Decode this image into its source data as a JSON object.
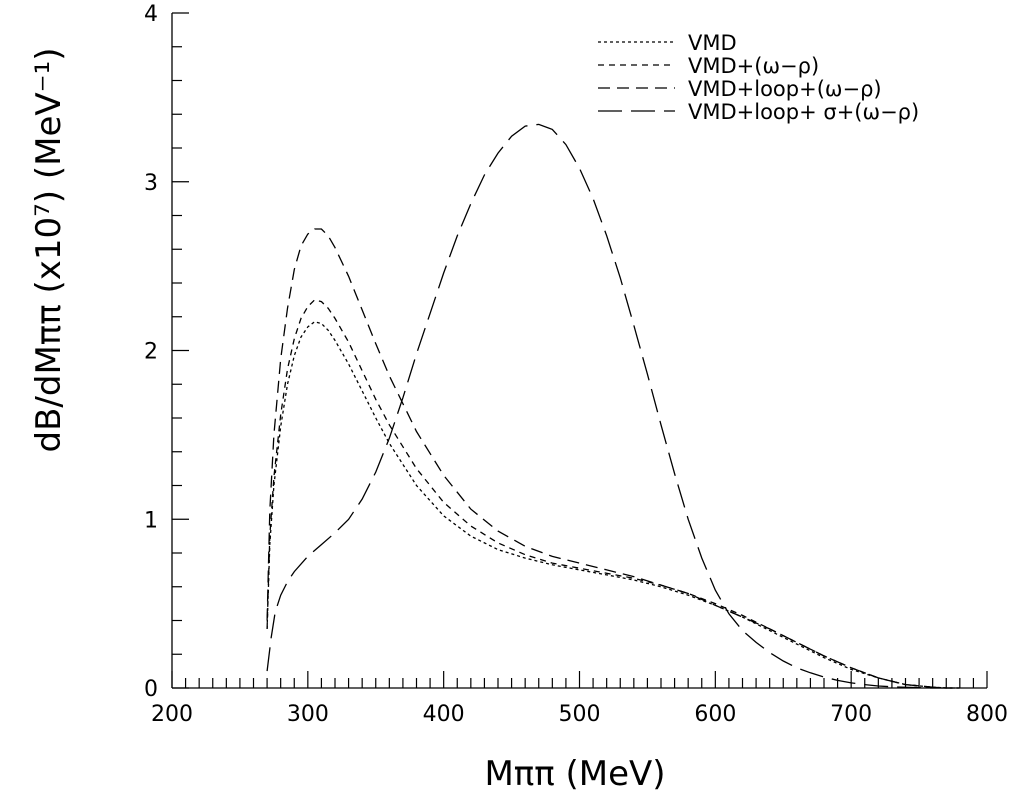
{
  "chart_data": {
    "type": "line",
    "xlabel": "Mππ  (MeV)",
    "ylabel": "dB/dMππ  (x10⁷)  (MeV⁻¹)",
    "xlim": [
      200,
      800
    ],
    "ylim": [
      0,
      4
    ],
    "x_ticks": [
      "200",
      "300",
      "400",
      "500",
      "600",
      "700",
      "800"
    ],
    "y_ticks": [
      "0",
      "1",
      "2",
      "3",
      "4"
    ],
    "grid": false,
    "legend_position": "top-right",
    "series": [
      {
        "name": "VMD",
        "dash": "3,3",
        "x": [
          270,
          272,
          275,
          280,
          285,
          290,
          295,
          300,
          305,
          310,
          315,
          320,
          330,
          340,
          350,
          360,
          380,
          400,
          420,
          440,
          460,
          480,
          500,
          520,
          540,
          560,
          580,
          600,
          620,
          640,
          660,
          680,
          700,
          720,
          740,
          760,
          770,
          780
        ],
        "y": [
          0.35,
          0.85,
          1.2,
          1.55,
          1.8,
          1.97,
          2.08,
          2.14,
          2.17,
          2.16,
          2.12,
          2.06,
          1.92,
          1.76,
          1.6,
          1.45,
          1.2,
          1.02,
          0.9,
          0.82,
          0.77,
          0.73,
          0.7,
          0.67,
          0.64,
          0.6,
          0.55,
          0.49,
          0.42,
          0.34,
          0.26,
          0.18,
          0.11,
          0.06,
          0.02,
          0.005,
          0.0,
          0.0
        ]
      },
      {
        "name": "VMD+(ω−ρ)",
        "dash": "6,5",
        "x": [
          270,
          272,
          275,
          280,
          285,
          290,
          295,
          300,
          305,
          310,
          315,
          320,
          330,
          340,
          350,
          360,
          380,
          400,
          420,
          440,
          460,
          480,
          500,
          520,
          540,
          560,
          580,
          600,
          620,
          640,
          660,
          680,
          700,
          720,
          740,
          760,
          770,
          780
        ],
        "y": [
          0.35,
          0.9,
          1.25,
          1.62,
          1.89,
          2.07,
          2.19,
          2.26,
          2.3,
          2.29,
          2.25,
          2.19,
          2.05,
          1.88,
          1.71,
          1.56,
          1.3,
          1.1,
          0.96,
          0.86,
          0.79,
          0.74,
          0.71,
          0.68,
          0.65,
          0.61,
          0.56,
          0.5,
          0.43,
          0.35,
          0.27,
          0.19,
          0.12,
          0.06,
          0.02,
          0.005,
          0.0,
          0.0
        ]
      },
      {
        "name": "VMD+loop+(ω−ρ)",
        "dash": "12,7",
        "x": [
          270,
          272,
          275,
          280,
          285,
          290,
          295,
          300,
          305,
          310,
          315,
          320,
          330,
          340,
          350,
          360,
          380,
          400,
          420,
          440,
          460,
          480,
          500,
          520,
          540,
          560,
          580,
          600,
          620,
          640,
          660,
          680,
          700,
          720,
          740,
          760,
          770,
          780
        ],
        "y": [
          0.4,
          1.05,
          1.5,
          1.95,
          2.25,
          2.48,
          2.62,
          2.69,
          2.72,
          2.72,
          2.68,
          2.61,
          2.44,
          2.24,
          2.04,
          1.85,
          1.52,
          1.26,
          1.06,
          0.93,
          0.84,
          0.78,
          0.74,
          0.7,
          0.66,
          0.61,
          0.56,
          0.49,
          0.42,
          0.35,
          0.27,
          0.19,
          0.12,
          0.06,
          0.02,
          0.005,
          0.0,
          0.0
        ]
      },
      {
        "name": "VMD+loop+ σ+(ω−ρ)",
        "dash": "24,9",
        "x": [
          270,
          273,
          276,
          280,
          285,
          290,
          300,
          310,
          320,
          330,
          340,
          350,
          360,
          370,
          380,
          390,
          400,
          410,
          420,
          430,
          440,
          450,
          460,
          470,
          480,
          490,
          500,
          510,
          520,
          530,
          540,
          550,
          560,
          570,
          580,
          590,
          600,
          610,
          620,
          630,
          640,
          650,
          660,
          670,
          680,
          690,
          700,
          710,
          720,
          730,
          740,
          750,
          760,
          770
        ],
        "y": [
          0.1,
          0.3,
          0.45,
          0.55,
          0.63,
          0.69,
          0.78,
          0.85,
          0.92,
          1.0,
          1.12,
          1.28,
          1.48,
          1.72,
          1.98,
          2.22,
          2.46,
          2.68,
          2.87,
          3.04,
          3.17,
          3.27,
          3.33,
          3.34,
          3.31,
          3.22,
          3.08,
          2.9,
          2.68,
          2.43,
          2.15,
          1.86,
          1.56,
          1.27,
          1.0,
          0.77,
          0.58,
          0.44,
          0.34,
          0.27,
          0.21,
          0.16,
          0.12,
          0.09,
          0.065,
          0.045,
          0.03,
          0.02,
          0.012,
          0.007,
          0.004,
          0.002,
          0.0,
          0.0
        ]
      }
    ]
  }
}
